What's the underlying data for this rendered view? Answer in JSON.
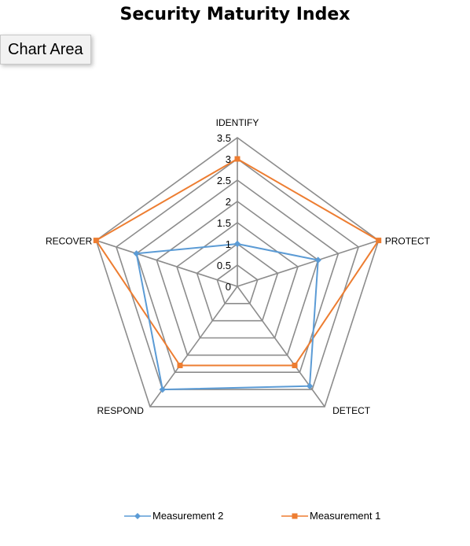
{
  "tooltip": "Chart Area",
  "chart_data": {
    "type": "radar",
    "title": "Security Maturity Index",
    "categories": [
      "IDENTIFY",
      "PROTECT",
      "DETECT",
      "RESPOND",
      "RECOVER"
    ],
    "rlim": [
      0,
      3.5
    ],
    "ticks": [
      "0",
      "0.5",
      "1",
      "1.5",
      "2",
      "2.5",
      "3",
      "3.5"
    ],
    "grid": true,
    "legend_position": "bottom",
    "series": [
      {
        "name": "Measurement 2",
        "values": [
          1,
          2,
          2.9,
          3,
          2.5
        ],
        "color": "#5b9bd5",
        "marker": "diamond"
      },
      {
        "name": "Measurement 1",
        "values": [
          3,
          3.5,
          2.3,
          2.3,
          3.5
        ],
        "color": "#ed7d31",
        "marker": "square"
      }
    ]
  }
}
